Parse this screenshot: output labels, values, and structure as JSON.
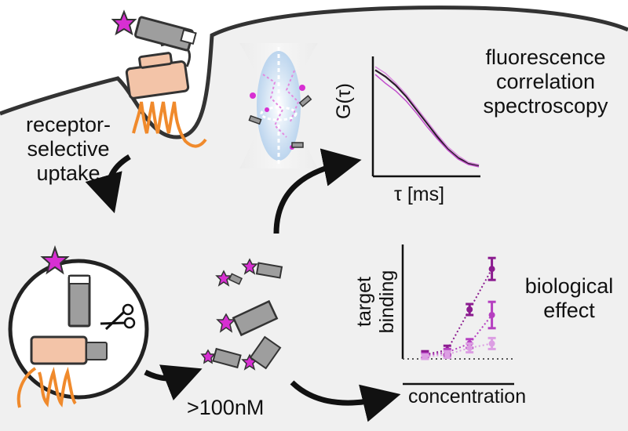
{
  "labels": {
    "uptake": [
      "receptor-",
      "selective",
      "uptake"
    ],
    "fcs": [
      "fluorescence",
      "correlation",
      "spectroscopy"
    ],
    "fcs_ylabel": "G(τ)",
    "fcs_xlabel": "τ [ms]",
    "concentration_note": ">100nM",
    "bio_ylabel": [
      "target",
      "binding"
    ],
    "bio_xlabel": "concentration",
    "bio_effect": [
      "biological",
      "effect"
    ]
  },
  "colors": {
    "dye": "#d72fd2",
    "receptor_orange": "#f08a2c",
    "cargo_beige": "#f3c4a8",
    "cell_bg": "#f0f0f0",
    "purple_dark": "#8b1b8f",
    "purple_mid": "#b53fc0",
    "purple_light": "#dc9ee3",
    "focal_blue": "#bcd5ee"
  },
  "chart_data": [
    {
      "type": "line",
      "title": "",
      "xlabel": "τ [ms]",
      "ylabel": "G(τ)",
      "x": [
        0,
        1,
        2,
        3,
        4,
        5,
        6,
        7,
        8,
        9,
        10
      ],
      "series": [
        {
          "values": [
            0.92,
            0.86,
            0.78,
            0.68,
            0.56,
            0.44,
            0.32,
            0.21,
            0.13,
            0.08,
            0.06
          ]
        },
        {
          "values": [
            0.88,
            0.8,
            0.73,
            0.64,
            0.53,
            0.41,
            0.3,
            0.2,
            0.12,
            0.07,
            0.05
          ]
        },
        {
          "values": [
            0.95,
            0.89,
            0.8,
            0.7,
            0.58,
            0.46,
            0.34,
            0.23,
            0.15,
            0.09,
            0.07
          ]
        }
      ],
      "xlim": [
        0,
        10
      ],
      "ylim": [
        0,
        1
      ],
      "grid": false
    },
    {
      "type": "scatter",
      "title": "",
      "xlabel": "concentration",
      "ylabel": "target binding",
      "x": [
        1,
        2,
        3,
        4
      ],
      "series": [
        {
          "values": [
            0.04,
            0.08,
            0.45,
            0.82
          ],
          "errors": [
            0.03,
            0.04,
            0.05,
            0.1
          ]
        },
        {
          "values": [
            0.03,
            0.06,
            0.14,
            0.4
          ],
          "errors": [
            0.02,
            0.03,
            0.04,
            0.12
          ]
        },
        {
          "values": [
            0.02,
            0.04,
            0.1,
            0.14
          ],
          "errors": [
            0.02,
            0.03,
            0.04,
            0.05
          ]
        }
      ],
      "baseline": 0.02,
      "xlim": [
        0,
        5
      ],
      "ylim": [
        0,
        1
      ],
      "grid": false
    }
  ]
}
